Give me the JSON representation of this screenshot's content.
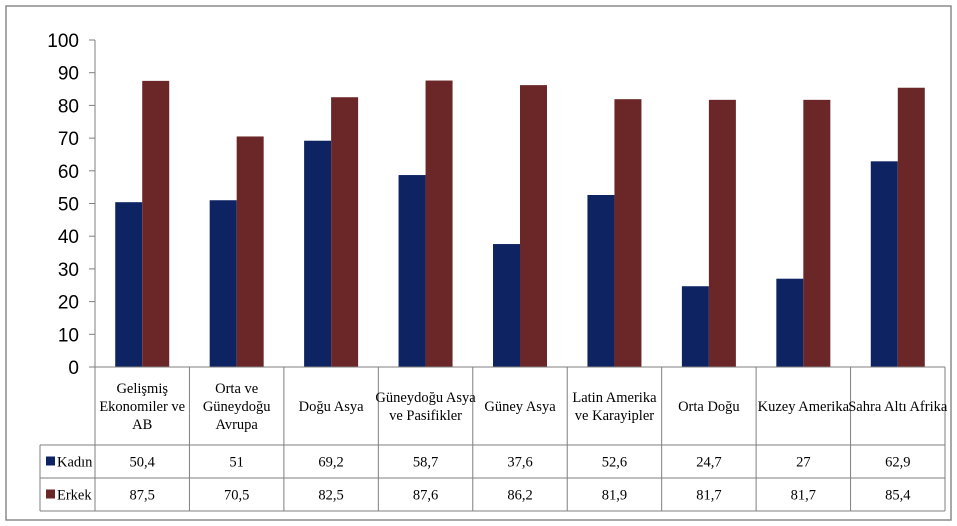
{
  "chart_data": {
    "type": "bar",
    "title": "",
    "xlabel": "",
    "ylabel": "",
    "ylim": [
      0,
      100
    ],
    "yticks": [
      0,
      10,
      20,
      30,
      40,
      50,
      60,
      70,
      80,
      90,
      100
    ],
    "grid": false,
    "legend": "in data table",
    "categories": [
      "Gelişmiş Ekonomiler ve AB",
      "Orta ve Güneydoğu Avrupa",
      "Doğu Asya",
      "Güneydoğu Asya ve Pasifikler",
      "Güney Asya",
      "Latin Amerika ve Karayipler",
      "Orta Doğu",
      "Kuzey Amerika",
      "Sahra Altı Afrika"
    ],
    "category_lines": [
      [
        "Gelişmiş",
        "Ekonomiler ve",
        "AB"
      ],
      [
        "Orta ve",
        "Güneydoğu",
        "Avrupa"
      ],
      [
        "Doğu Asya"
      ],
      [
        "Güneydoğu Asya",
        "ve Pasifikler"
      ],
      [
        "Güney Asya"
      ],
      [
        "Latin Amerika",
        "ve Karayipler"
      ],
      [
        "Orta Doğu"
      ],
      [
        "Kuzey Amerika"
      ],
      [
        "Sahra Altı Afrika"
      ]
    ],
    "series": [
      {
        "name": "Kadın",
        "color": "#0e2462",
        "values": [
          50.4,
          51,
          69.2,
          58.7,
          37.6,
          52.6,
          24.7,
          27,
          62.9
        ],
        "labels": [
          "50,4",
          "51",
          "69,2",
          "58,7",
          "37,6",
          "52,6",
          "24,7",
          "27",
          "62,9"
        ]
      },
      {
        "name": "Erkek",
        "color": "#6b2727",
        "values": [
          87.5,
          70.5,
          82.5,
          87.6,
          86.2,
          81.9,
          81.7,
          81.7,
          85.4
        ],
        "labels": [
          "87,5",
          "70,5",
          "82,5",
          "87,6",
          "86,2",
          "81,9",
          "81,7",
          "81,7",
          "85,4"
        ]
      }
    ]
  }
}
